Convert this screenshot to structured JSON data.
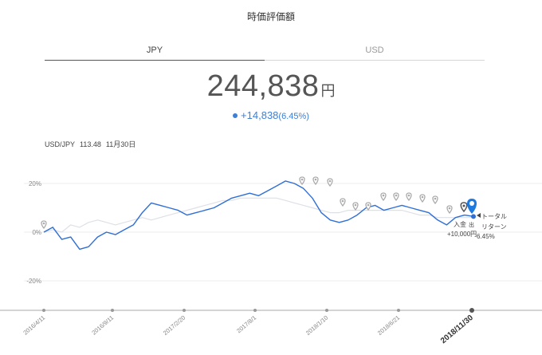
{
  "header": {
    "title": "時価評価額"
  },
  "tabs": [
    {
      "label": "JPY",
      "active": true
    },
    {
      "label": "USD",
      "active": false
    }
  ],
  "valuation": {
    "amount": "244,838",
    "unit": "円"
  },
  "change": {
    "amount": "+14,838",
    "percent": "(6.45%)"
  },
  "fx": {
    "label": "USD/JPY",
    "rate": "113.48",
    "date": "11月30日"
  },
  "chart_data": {
    "type": "line",
    "y_ticks": [
      "20%",
      "0%",
      "-20%"
    ],
    "x_ticks": [
      "2016/4/11",
      "2016/9/11",
      "2017/2/20",
      "2017/8/1",
      "2018/1/10",
      "2018/6/21",
      "2018/11/30"
    ],
    "ylim": [
      -30,
      30
    ],
    "series": [
      {
        "name": "",
        "color": "#2f6fd6",
        "values": [
          0,
          2,
          -3,
          -2,
          -7,
          -6,
          -2,
          0,
          -1,
          1,
          3,
          8,
          12,
          11,
          10,
          9,
          7,
          8,
          9,
          10,
          12,
          14,
          15,
          16,
          15,
          17,
          19,
          21,
          20,
          18,
          14,
          8,
          5,
          4,
          5,
          7,
          10,
          11,
          9,
          10,
          11,
          10,
          9,
          8,
          5,
          3,
          6,
          7,
          6.45
        ]
      },
      {
        "name": "",
        "color": "#dde0e6",
        "values": [
          0,
          1,
          0,
          3,
          2,
          4,
          5,
          4,
          3,
          4,
          5,
          6,
          5,
          6,
          7,
          8,
          9,
          10,
          11,
          12,
          13,
          13,
          14,
          14,
          14,
          14,
          14,
          13,
          12,
          11,
          10,
          9,
          8,
          8,
          9,
          9,
          9,
          9,
          9,
          9,
          9,
          8,
          7,
          7,
          6,
          6,
          6,
          6,
          6
        ]
      }
    ],
    "markers_count": 13,
    "annotations": {
      "deposit_label": "入金",
      "withdraw_label": "出",
      "deposit_amount": "+10,000円",
      "total_return_label_1": "トータル",
      "total_return_label_2": "リターン",
      "total_return_value": "6.45%"
    }
  }
}
